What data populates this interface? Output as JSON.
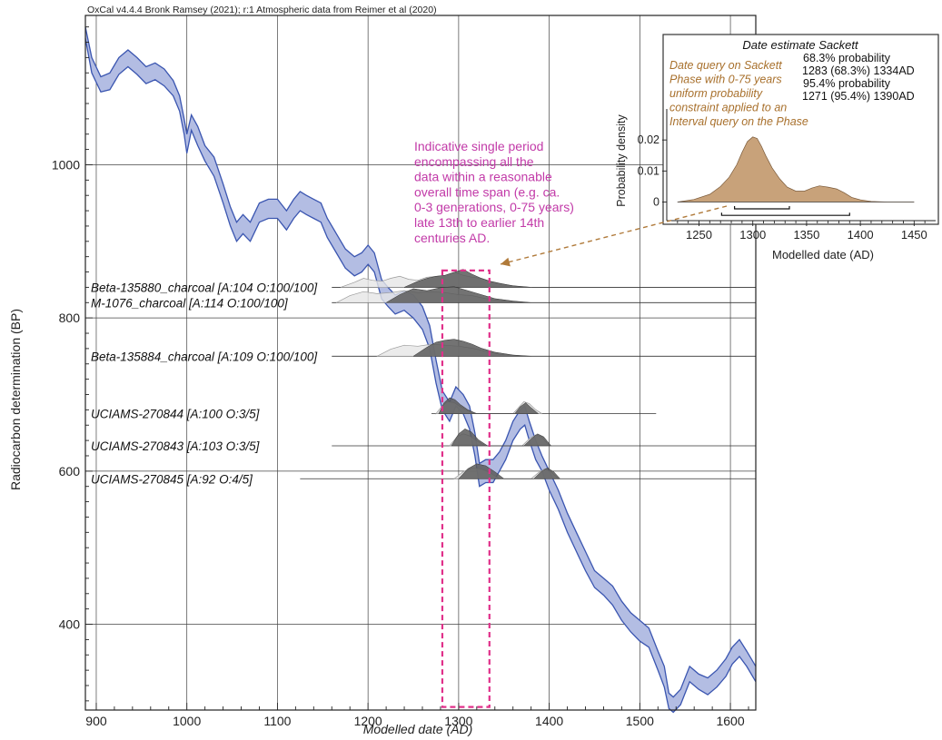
{
  "chart_data": [
    {
      "type": "area",
      "header": "OxCal v4.4.4 Bronk Ramsey (2021); r:1 Atmospheric data from Reimer et al (2020)",
      "xlabel": "Modelled date (AD)",
      "ylabel": "Radiocarbon determination (BP)",
      "xlim": [
        888,
        1628
      ],
      "ylim": [
        288,
        1195
      ],
      "x_ticks": [
        900,
        1000,
        1100,
        1200,
        1300,
        1400,
        1500,
        1600
      ],
      "y_ticks": [
        400,
        600,
        800,
        1000
      ],
      "x_minor_tick_step": 20,
      "y_minor_tick_step": 20,
      "grid": true,
      "calibration_curve": {
        "color": "#3a55b0",
        "fill": "#b3bde3",
        "x": [
          888,
          895,
          905,
          915,
          925,
          935,
          945,
          955,
          965,
          975,
          985,
          992,
          997,
          1000,
          1005,
          1012,
          1020,
          1030,
          1040,
          1048,
          1055,
          1062,
          1070,
          1080,
          1090,
          1100,
          1110,
          1118,
          1125,
          1132,
          1140,
          1148,
          1155,
          1165,
          1175,
          1185,
          1193,
          1200,
          1207,
          1215,
          1222,
          1230,
          1240,
          1250,
          1260,
          1268,
          1275,
          1282,
          1290,
          1297,
          1305,
          1312,
          1318,
          1323,
          1330,
          1338,
          1345,
          1352,
          1360,
          1368,
          1373,
          1378,
          1385,
          1392,
          1400,
          1410,
          1420,
          1430,
          1440,
          1450,
          1460,
          1470,
          1480,
          1490,
          1500,
          1510,
          1520,
          1527,
          1532,
          1537,
          1545,
          1555,
          1565,
          1575,
          1585,
          1595,
          1602,
          1610,
          1618,
          1628
        ],
        "upper": [
          1180,
          1140,
          1115,
          1120,
          1140,
          1150,
          1140,
          1128,
          1133,
          1125,
          1110,
          1090,
          1060,
          1040,
          1065,
          1050,
          1025,
          1010,
          975,
          945,
          925,
          935,
          925,
          950,
          955,
          955,
          940,
          955,
          965,
          960,
          955,
          950,
          930,
          910,
          890,
          880,
          885,
          895,
          885,
          850,
          840,
          830,
          835,
          830,
          815,
          790,
          745,
          705,
          690,
          710,
          700,
          685,
          650,
          610,
          615,
          615,
          625,
          640,
          665,
          680,
          685,
          665,
          640,
          620,
          600,
          575,
          545,
          520,
          495,
          470,
          460,
          450,
          430,
          415,
          405,
          395,
          365,
          345,
          310,
          305,
          315,
          345,
          335,
          330,
          340,
          355,
          370,
          380,
          365,
          345
        ],
        "lower": [
          1165,
          1120,
          1095,
          1098,
          1118,
          1128,
          1118,
          1106,
          1111,
          1103,
          1090,
          1070,
          1040,
          1015,
          1045,
          1025,
          1005,
          985,
          950,
          920,
          900,
          910,
          900,
          925,
          930,
          930,
          915,
          930,
          940,
          935,
          930,
          925,
          905,
          885,
          865,
          855,
          860,
          870,
          860,
          825,
          815,
          805,
          810,
          800,
          785,
          760,
          715,
          680,
          665,
          685,
          675,
          655,
          620,
          580,
          585,
          585,
          600,
          615,
          640,
          655,
          660,
          640,
          615,
          600,
          575,
          550,
          520,
          495,
          470,
          448,
          438,
          425,
          405,
          390,
          378,
          370,
          340,
          318,
          290,
          285,
          295,
          325,
          315,
          308,
          318,
          332,
          348,
          358,
          345,
          325
        ]
      },
      "samples": [
        {
          "label": "Beta-135880_charcoal [A:104 O:100/100]",
          "y": 840,
          "line_x": [
            1160,
            1628
          ],
          "unmodelled": {
            "x": [
              1170,
              1185,
              1195,
              1205,
              1215,
              1225,
              1235,
              1245,
              1255,
              1265,
              1275,
              1285,
              1295,
              1305,
              1315,
              1325,
              1335,
              1345,
              1355,
              1365,
              1380
            ],
            "d": [
              0,
              0.25,
              0.45,
              0.35,
              0.3,
              0.45,
              0.55,
              0.4,
              0.35,
              0.5,
              0.55,
              0.6,
              0.75,
              0.6,
              0.5,
              0.45,
              0.3,
              0.2,
              0.1,
              0.05,
              0
            ]
          },
          "modelled": {
            "x": [
              1240,
              1255,
              1265,
              1275,
              1285,
              1295,
              1305,
              1315,
              1325,
              1335,
              1345,
              1360,
              1380
            ],
            "d": [
              0,
              0.3,
              0.45,
              0.55,
              0.6,
              0.75,
              0.9,
              0.65,
              0.45,
              0.3,
              0.2,
              0.08,
              0
            ]
          }
        },
        {
          "label": "M-1076_charcoal [A:114 O:100/100]",
          "y": 820,
          "line_x": [
            1160,
            1628
          ],
          "unmodelled": {
            "x": [
              1165,
              1180,
              1195,
              1210,
              1225,
              1240,
              1255,
              1270,
              1285,
              1300,
              1315,
              1330,
              1345,
              1360,
              1375
            ],
            "d": [
              0,
              0.35,
              0.55,
              0.45,
              0.5,
              0.6,
              0.5,
              0.55,
              0.5,
              0.4,
              0.35,
              0.2,
              0.1,
              0.05,
              0
            ]
          },
          "modelled": {
            "x": [
              1220,
              1235,
              1250,
              1265,
              1280,
              1295,
              1310,
              1325,
              1340,
              1360,
              1380
            ],
            "d": [
              0,
              0.4,
              0.7,
              0.6,
              0.75,
              0.8,
              0.6,
              0.4,
              0.2,
              0.08,
              0
            ]
          }
        },
        {
          "label": "Beta-135884_charcoal [A:109 O:100/100]",
          "y": 750,
          "line_x": [
            1160,
            1628
          ],
          "unmodelled": {
            "x": [
              1210,
              1225,
              1240,
              1255,
              1270,
              1285,
              1300,
              1315,
              1330,
              1345,
              1360,
              1375
            ],
            "d": [
              0,
              0.35,
              0.55,
              0.5,
              0.6,
              0.55,
              0.5,
              0.4,
              0.25,
              0.1,
              0.05,
              0
            ]
          },
          "modelled": {
            "x": [
              1250,
              1265,
              1275,
              1285,
              1295,
              1305,
              1315,
              1325,
              1340,
              1360,
              1380
            ],
            "d": [
              0,
              0.45,
              0.7,
              0.8,
              0.85,
              0.75,
              0.6,
              0.4,
              0.2,
              0.06,
              0
            ]
          }
        },
        {
          "label": "UCIAMS-270844 [A:100 O:3/5]",
          "y": 675,
          "line_x": [
            1270,
            1518
          ],
          "unmodelled": {
            "x": [
              1275,
              1282,
              1288,
              1295,
              1302,
              1310,
              1320,
              1360,
              1366,
              1372,
              1378,
              1385,
              1392
            ],
            "d": [
              0,
              0.4,
              0.6,
              0.55,
              0.35,
              0.15,
              0,
              0,
              0.3,
              0.6,
              0.5,
              0.2,
              0
            ]
          },
          "modelled": {
            "x": [
              1278,
              1284,
              1290,
              1296,
              1302,
              1310,
              1320,
              1362,
              1368,
              1374,
              1380,
              1388
            ],
            "d": [
              0,
              0.55,
              0.8,
              0.7,
              0.45,
              0.2,
              0,
              0,
              0.35,
              0.55,
              0.3,
              0
            ]
          }
        },
        {
          "label": "UCIAMS-270843 [A:103 O:3/5]",
          "y": 633,
          "line_x": [
            1160,
            1628
          ],
          "unmodelled": {
            "x": [
              1290,
              1298,
              1305,
              1312,
              1320,
              1330,
              1370,
              1378,
              1385,
              1392,
              1400
            ],
            "d": [
              0,
              0.45,
              0.6,
              0.5,
              0.25,
              0,
              0,
              0.35,
              0.55,
              0.45,
              0
            ]
          },
          "modelled": {
            "x": [
              1292,
              1300,
              1307,
              1314,
              1322,
              1332,
              1372,
              1380,
              1387,
              1394,
              1402
            ],
            "d": [
              0,
              0.6,
              0.85,
              0.7,
              0.3,
              0,
              0,
              0.35,
              0.6,
              0.45,
              0
            ]
          }
        },
        {
          "label": "UCIAMS-270845 [A:92 O:4/5]",
          "y": 590,
          "line_x": [
            1125,
            1628
          ],
          "unmodelled": {
            "x": [
              1295,
              1305,
              1315,
              1325,
              1335,
              1345,
              1380,
              1388,
              1395,
              1402,
              1410
            ],
            "d": [
              0,
              0.35,
              0.55,
              0.5,
              0.3,
              0,
              0,
              0.3,
              0.5,
              0.35,
              0
            ]
          },
          "modelled": {
            "x": [
              1300,
              1310,
              1320,
              1330,
              1340,
              1350,
              1383,
              1391,
              1398,
              1405,
              1412
            ],
            "d": [
              0,
              0.5,
              0.75,
              0.65,
              0.35,
              0,
              0,
              0.35,
              0.55,
              0.35,
              0
            ]
          }
        }
      ],
      "highlight_box": {
        "x": [
          1282,
          1334
        ],
        "y": [
          292,
          862
        ],
        "color": "#e0308a"
      },
      "annotation": {
        "lines": [
          "Indicative single period",
          "encompassing all the",
          "data within a reasonable",
          "overall time span (e.g. ca.",
          "0-3 generations, 0-75 years)",
          "late 13th to earlier 14th",
          "centuries AD."
        ],
        "color": "#c23aa8"
      }
    },
    {
      "type": "area",
      "title": "Date estimate Sackett",
      "xlabel": "Modelled date (AD)",
      "ylabel": "Probability density",
      "xlim": [
        1220,
        1470
      ],
      "ylim": [
        -0.006,
        0.03
      ],
      "x_ticks": [
        1250,
        1300,
        1350,
        1400,
        1450
      ],
      "y_ticks": [
        0,
        0.01,
        0.02
      ],
      "x_minor_tick_step": 10,
      "y_minor_tick_step": 0.005,
      "stats": [
        "68.3% probability",
        "1283 (68.3%) 1334AD",
        "95.4% probability",
        "1271 (95.4%) 1390AD"
      ],
      "note_lines": [
        "Date query on Sackett",
        "Phase with 0-75 years",
        "uniform probability",
        "constraint applied to an",
        "Interval query on the Phase"
      ],
      "note_color": "#a8702c",
      "fill": "#c8a27a",
      "density": {
        "x": [
          1230,
          1245,
          1260,
          1270,
          1278,
          1285,
          1290,
          1295,
          1300,
          1304,
          1308,
          1312,
          1318,
          1325,
          1332,
          1340,
          1348,
          1355,
          1362,
          1370,
          1378,
          1385,
          1392,
          1400,
          1410,
          1425,
          1450
        ],
        "y": [
          0.0,
          0.0008,
          0.0025,
          0.005,
          0.008,
          0.012,
          0.016,
          0.0195,
          0.021,
          0.0205,
          0.018,
          0.015,
          0.011,
          0.0075,
          0.0048,
          0.0035,
          0.0035,
          0.0045,
          0.0052,
          0.0048,
          0.0042,
          0.003,
          0.0015,
          0.0007,
          0.0002,
          0.0,
          0.0
        ]
      },
      "range_68": [
        1283,
        1334
      ],
      "range_95": [
        1271,
        1390
      ]
    }
  ]
}
